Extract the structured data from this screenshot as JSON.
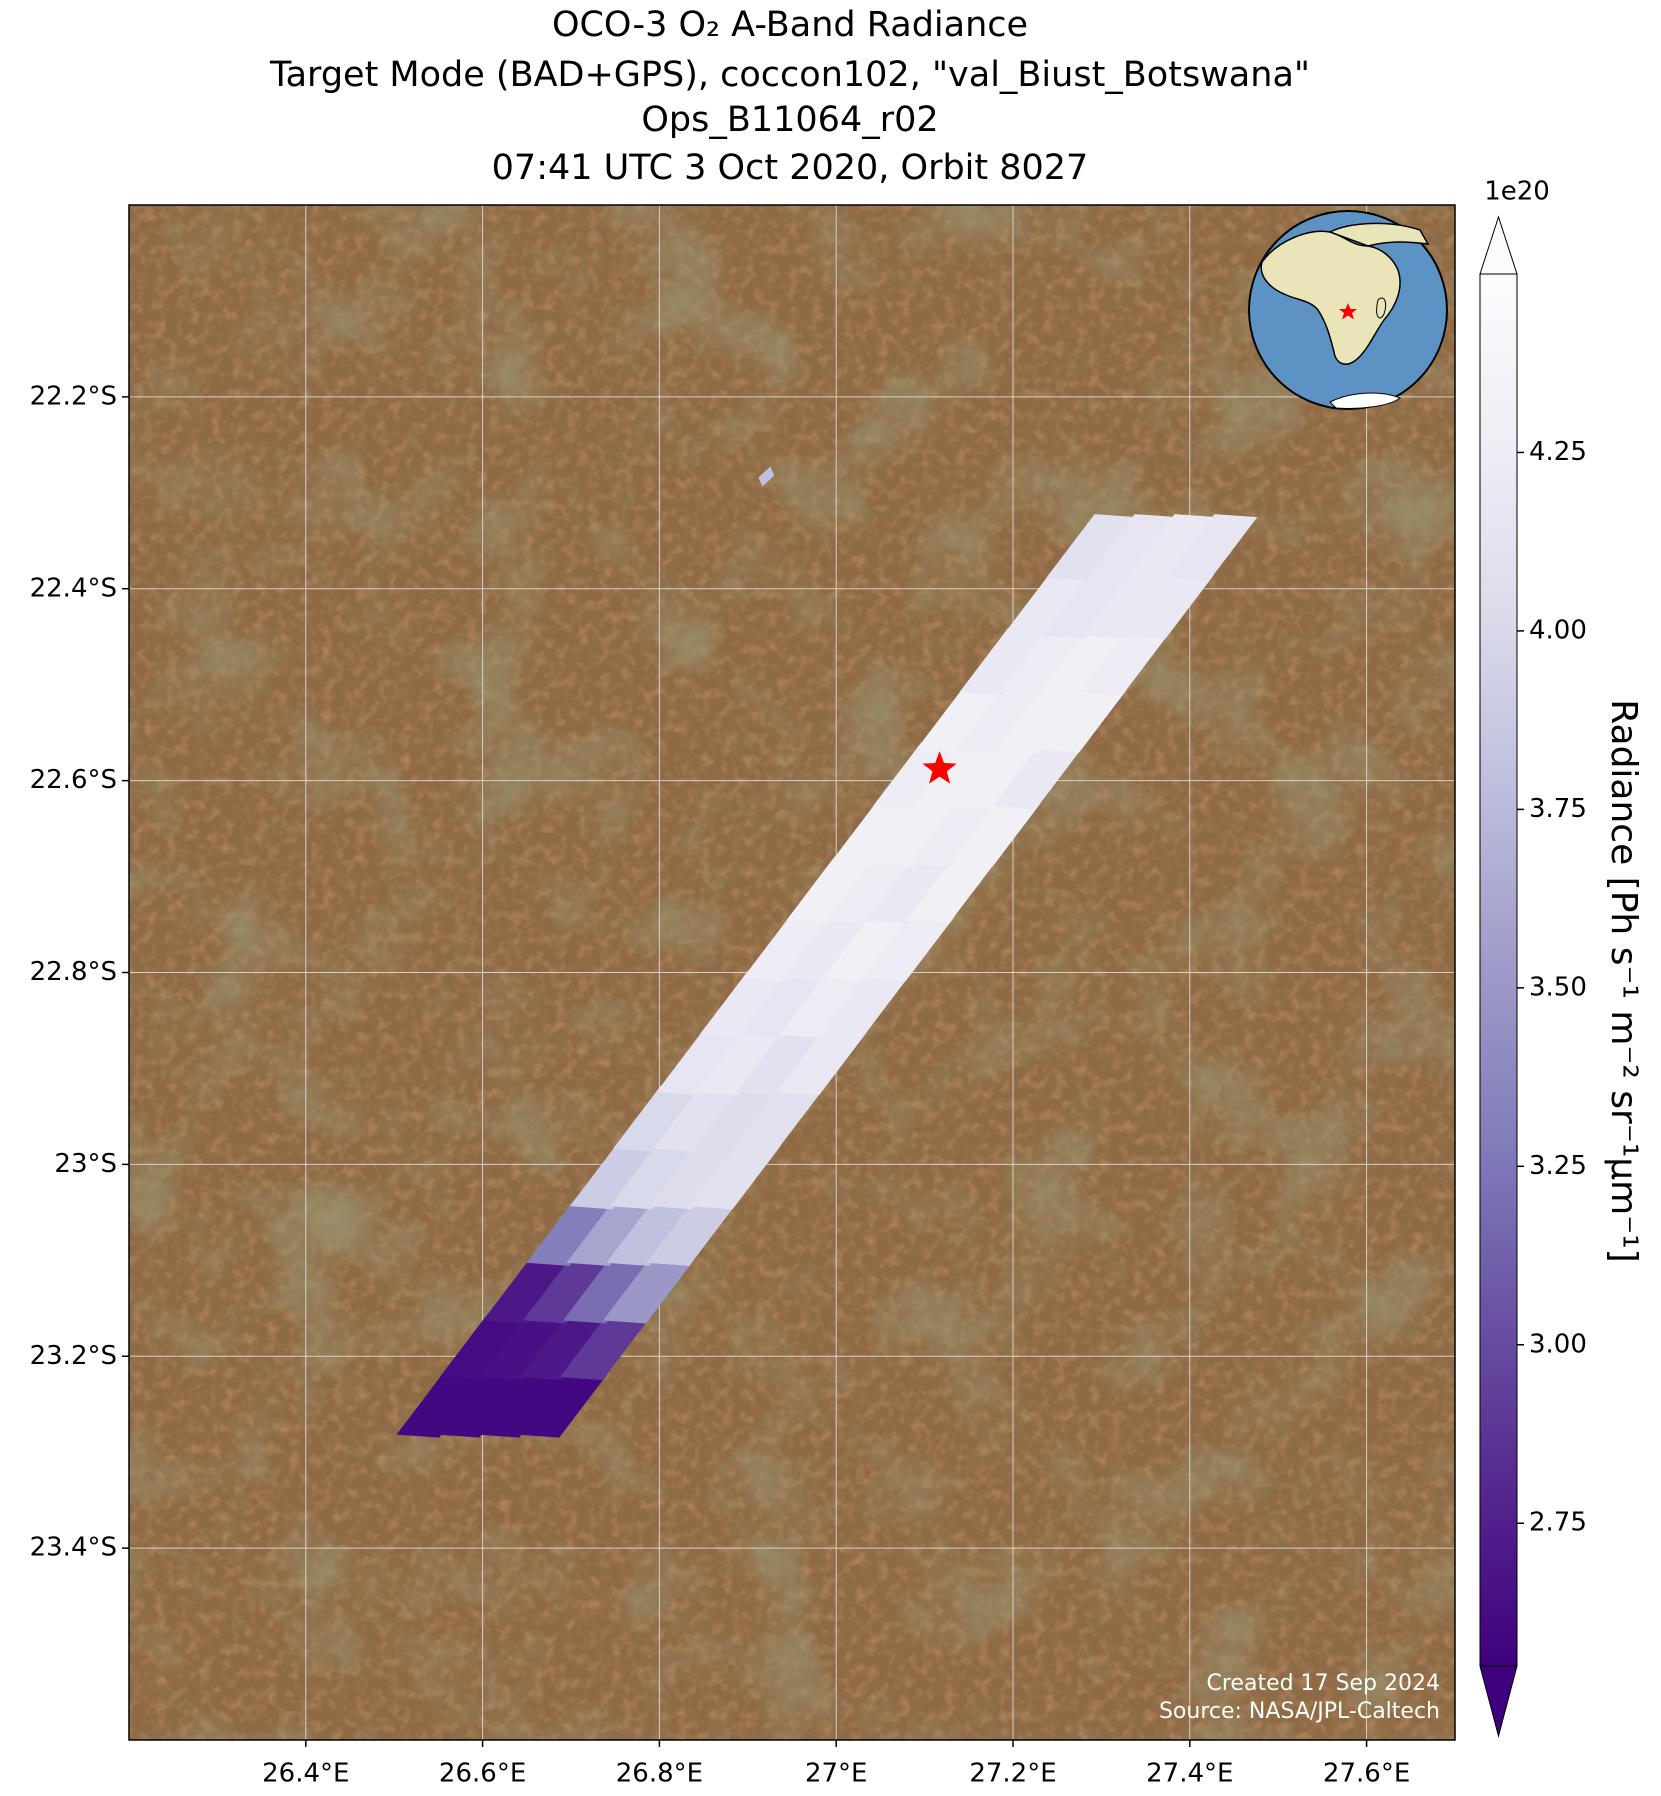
{
  "chart_data": {
    "type": "swath-map",
    "title": [
      "OCO-3 O₂ A-Band Radiance",
      "Target Mode (BAD+GPS), coccon102, \"val_Biust_Botswana\"",
      "Ops_B11064_r02",
      "07:41 UTC 3 Oct 2020, Orbit 8027"
    ],
    "xlim": [
      26.2,
      27.7
    ],
    "ylim": [
      -23.6,
      -22.0
    ],
    "xticks": [
      {
        "value": 26.4,
        "label": "26.4°E"
      },
      {
        "value": 26.6,
        "label": "26.6°E"
      },
      {
        "value": 26.8,
        "label": "26.8°E"
      },
      {
        "value": 27,
        "label": "27°E"
      },
      {
        "value": 27.2,
        "label": "27.2°E"
      },
      {
        "value": 27.4,
        "label": "27.4°E"
      },
      {
        "value": 27.6,
        "label": "27.6°E"
      }
    ],
    "yticks": [
      {
        "value": -22.2,
        "label": "22.2°S"
      },
      {
        "value": -22.4,
        "label": "22.4°S"
      },
      {
        "value": -22.6,
        "label": "22.6°S"
      },
      {
        "value": -22.8,
        "label": "22.8°S"
      },
      {
        "value": -23,
        "label": "23°S"
      },
      {
        "value": -23.2,
        "label": "23.2°S"
      },
      {
        "value": -23.4,
        "label": "23.4°S"
      }
    ],
    "grid": true,
    "colorbar": {
      "label": "Radiance [Ph s⁻¹ m⁻² sr⁻¹μm⁻¹]",
      "offset_label": "1e20",
      "lim": [
        2.55,
        4.5
      ],
      "ticks": [
        {
          "value": 2.75,
          "label": "2.75"
        },
        {
          "value": 3,
          "label": "3.00"
        },
        {
          "value": 3.25,
          "label": "3.25"
        },
        {
          "value": 3.5,
          "label": "3.50"
        },
        {
          "value": 3.75,
          "label": "3.75"
        },
        {
          "value": 4,
          "label": "4.00"
        },
        {
          "value": 4.25,
          "label": "4.25"
        }
      ],
      "colormap": [
        "#3f007d",
        "#54278f",
        "#6a51a3",
        "#807dba",
        "#9e9ac8",
        "#bcbddc",
        "#dadaeb",
        "#efedf5",
        "#fcfbfd"
      ]
    },
    "rows": [
      {
        "lon": 26.622,
        "lat": -23.25,
        "values": [
          2.6,
          2.6,
          2.6,
          2.6
        ]
      },
      {
        "lon": 26.671,
        "lat": -23.19,
        "values": [
          2.62,
          2.65,
          2.7,
          2.9
        ]
      },
      {
        "lon": 26.72,
        "lat": -23.131,
        "values": [
          2.7,
          2.9,
          3.2,
          3.5
        ]
      },
      {
        "lon": 26.769,
        "lat": -23.071,
        "values": [
          3.3,
          3.6,
          3.8,
          3.9
        ]
      },
      {
        "lon": 26.818,
        "lat": -23.012,
        "values": [
          3.9,
          4.0,
          4.05,
          4.1
        ]
      },
      {
        "lon": 26.867,
        "lat": -22.952,
        "values": [
          4.0,
          4.1,
          4.05,
          4.1
        ]
      },
      {
        "lon": 26.916,
        "lat": -22.893,
        "values": [
          4.15,
          4.2,
          4.1,
          4.2
        ]
      },
      {
        "lon": 26.965,
        "lat": -22.833,
        "values": [
          4.2,
          4.15,
          4.25,
          4.2
        ]
      },
      {
        "lon": 27.014,
        "lat": -22.774,
        "values": [
          4.25,
          4.2,
          4.3,
          4.25
        ]
      },
      {
        "lon": 27.063,
        "lat": -22.714,
        "values": [
          4.3,
          4.25,
          4.2,
          4.3
        ]
      },
      {
        "lon": 27.112,
        "lat": -22.655,
        "values": [
          4.3,
          4.3,
          4.25,
          4.3
        ]
      },
      {
        "lon": 27.161,
        "lat": -22.595,
        "values": [
          4.25,
          4.3,
          4.3,
          4.2
        ]
      },
      {
        "lon": 27.21,
        "lat": -22.536,
        "values": [
          4.3,
          4.25,
          4.3,
          4.3
        ]
      },
      {
        "lon": 27.259,
        "lat": -22.476,
        "values": [
          4.2,
          4.25,
          4.3,
          4.25
        ]
      },
      {
        "lon": 27.308,
        "lat": -22.417,
        "values": [
          4.2,
          4.15,
          4.2,
          4.2
        ]
      },
      {
        "lon": 27.357,
        "lat": -22.357,
        "values": [
          4.1,
          4.15,
          4.2,
          4.15
        ]
      }
    ],
    "extra_soundings": [
      {
        "lon": 26.921,
        "lat": -22.283,
        "value": 3.8
      }
    ],
    "target": {
      "lon": 27.117,
      "lat": -22.588,
      "color": "#ff0000"
    },
    "annotations": [
      "Created 17 Sep 2024",
      "Source: NASA/JPL-Caltech"
    ]
  }
}
